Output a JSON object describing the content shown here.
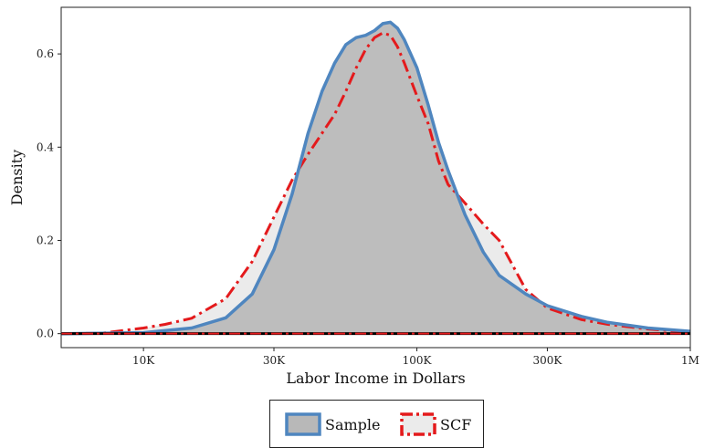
{
  "chart_data": {
    "type": "area",
    "xlabel": "Labor Income in Dollars",
    "ylabel": "Density",
    "x_scale": "log10",
    "xlim": [
      5000,
      1000000
    ],
    "ylim": [
      -0.03,
      0.7
    ],
    "x_ticks": [
      {
        "value": 10000,
        "label": "10K"
      },
      {
        "value": 30000,
        "label": "30K"
      },
      {
        "value": 100000,
        "label": "100K"
      },
      {
        "value": 300000,
        "label": "300K"
      },
      {
        "value": 1000000,
        "label": "1M"
      }
    ],
    "y_ticks": [
      {
        "value": 0.0,
        "label": "0.0"
      },
      {
        "value": 0.2,
        "label": "0.2"
      },
      {
        "value": 0.4,
        "label": "0.4"
      },
      {
        "value": 0.6,
        "label": "0.6"
      }
    ],
    "grid": false,
    "legend_position": "bottom",
    "series": [
      {
        "name": "Sample",
        "fill": "#b8b8b8",
        "stroke": "#4f86bf",
        "line_style": "solid",
        "x": [
          5000,
          10000,
          15000,
          20000,
          25000,
          30000,
          35000,
          40000,
          45000,
          50000,
          55000,
          60000,
          65000,
          70000,
          75000,
          80000,
          85000,
          90000,
          100000,
          110000,
          120000,
          130000,
          150000,
          175000,
          200000,
          250000,
          300000,
          400000,
          500000,
          700000,
          1000000
        ],
        "y": [
          0.0,
          0.002,
          0.012,
          0.034,
          0.085,
          0.18,
          0.3,
          0.43,
          0.52,
          0.58,
          0.62,
          0.635,
          0.64,
          0.65,
          0.665,
          0.668,
          0.655,
          0.63,
          0.57,
          0.49,
          0.41,
          0.35,
          0.255,
          0.175,
          0.125,
          0.085,
          0.06,
          0.037,
          0.024,
          0.012,
          0.005
        ]
      },
      {
        "name": "SCF",
        "fill": "#ebebeb",
        "stroke": "#e41a1c",
        "line_style": "dashdot",
        "x": [
          5000,
          7000,
          8000,
          10000,
          12000,
          15000,
          20000,
          25000,
          30000,
          35000,
          40000,
          45000,
          50000,
          55000,
          60000,
          65000,
          70000,
          75000,
          80000,
          85000,
          90000,
          100000,
          110000,
          120000,
          130000,
          150000,
          175000,
          200000,
          250000,
          300000,
          400000,
          500000,
          700000,
          1000000
        ],
        "y": [
          0.0,
          0.001,
          0.005,
          0.012,
          0.02,
          0.033,
          0.075,
          0.155,
          0.25,
          0.33,
          0.385,
          0.43,
          0.47,
          0.52,
          0.57,
          0.61,
          0.635,
          0.645,
          0.64,
          0.615,
          0.58,
          0.51,
          0.45,
          0.37,
          0.32,
          0.28,
          0.235,
          0.2,
          0.095,
          0.055,
          0.03,
          0.02,
          0.01,
          0.003
        ]
      }
    ]
  }
}
